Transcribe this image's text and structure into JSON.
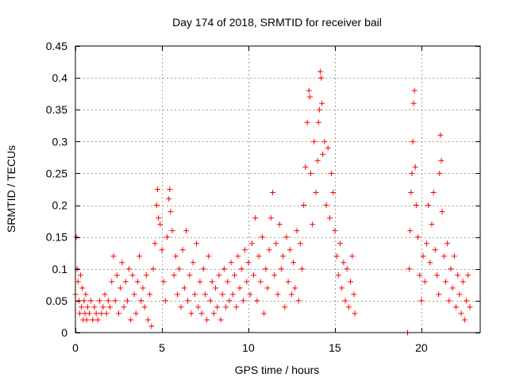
{
  "chart_data": {
    "type": "scatter",
    "title": "Day 174 of 2018, SRMTID for receiver bail",
    "xlabel": "GPS time / hours",
    "ylabel": "SRMTID / TECUs",
    "xlim": [
      0,
      23.4
    ],
    "ylim": [
      0,
      0.45
    ],
    "xticks": [
      0,
      5,
      10,
      15,
      20
    ],
    "xtick_labels": [
      "0",
      "5",
      "10",
      "15",
      "20"
    ],
    "yticks": [
      0,
      0.05,
      0.1,
      0.15,
      0.2,
      0.25,
      0.3,
      0.35,
      0.4,
      0.45
    ],
    "ytick_labels": [
      "0",
      "0.05",
      "0.1",
      "0.15",
      "0.2",
      "0.25",
      "0.3",
      "0.35",
      "0.4",
      "0.45"
    ],
    "grid": true,
    "marker": "+",
    "color": "#ff0000",
    "series": [
      {
        "name": "SRMTID",
        "points": [
          [
            0.0,
            0.06
          ],
          [
            0.05,
            0.15
          ],
          [
            0.1,
            0.1
          ],
          [
            0.15,
            0.08
          ],
          [
            0.2,
            0.05
          ],
          [
            0.25,
            0.03
          ],
          [
            0.3,
            0.09
          ],
          [
            0.35,
            0.04
          ],
          [
            0.4,
            0.07
          ],
          [
            0.45,
            0.02
          ],
          [
            0.5,
            0.05
          ],
          [
            0.55,
            0.03
          ],
          [
            0.6,
            0.06
          ],
          [
            0.65,
            0.02
          ],
          [
            0.7,
            0.04
          ],
          [
            0.8,
            0.03
          ],
          [
            0.9,
            0.05
          ],
          [
            1.0,
            0.02
          ],
          [
            1.1,
            0.04
          ],
          [
            1.2,
            0.03
          ],
          [
            1.3,
            0.02
          ],
          [
            1.4,
            0.05
          ],
          [
            1.5,
            0.03
          ],
          [
            1.6,
            0.04
          ],
          [
            1.7,
            0.06
          ],
          [
            1.8,
            0.03
          ],
          [
            1.9,
            0.05
          ],
          [
            2.0,
            0.04
          ],
          [
            2.1,
            0.08
          ],
          [
            2.2,
            0.12
          ],
          [
            2.3,
            0.05
          ],
          [
            2.4,
            0.09
          ],
          [
            2.5,
            0.03
          ],
          [
            2.6,
            0.07
          ],
          [
            2.7,
            0.11
          ],
          [
            2.8,
            0.04
          ],
          [
            2.9,
            0.08
          ],
          [
            3.0,
            0.05
          ],
          [
            3.1,
            0.1
          ],
          [
            3.2,
            0.02
          ],
          [
            3.3,
            0.09
          ],
          [
            3.4,
            0.06
          ],
          [
            3.5,
            0.03
          ],
          [
            3.6,
            0.08
          ],
          [
            3.7,
            0.12
          ],
          [
            3.8,
            0.05
          ],
          [
            3.9,
            0.07
          ],
          [
            4.0,
            0.04
          ],
          [
            4.1,
            0.09
          ],
          [
            4.2,
            0.02
          ],
          [
            4.3,
            0.06
          ],
          [
            4.4,
            0.01
          ],
          [
            4.5,
            0.1
          ],
          [
            4.6,
            0.14
          ],
          [
            4.7,
            0.2
          ],
          [
            4.75,
            0.225
          ],
          [
            4.8,
            0.18
          ],
          [
            4.9,
            0.17
          ],
          [
            5.0,
            0.13
          ],
          [
            5.1,
            0.08
          ],
          [
            5.2,
            0.05
          ],
          [
            5.3,
            0.15
          ],
          [
            5.4,
            0.21
          ],
          [
            5.45,
            0.225
          ],
          [
            5.5,
            0.19
          ],
          [
            5.6,
            0.16
          ],
          [
            5.7,
            0.09
          ],
          [
            5.8,
            0.12
          ],
          [
            5.9,
            0.06
          ],
          [
            6.0,
            0.1
          ],
          [
            6.1,
            0.04
          ],
          [
            6.2,
            0.13
          ],
          [
            6.3,
            0.07
          ],
          [
            6.4,
            0.16
          ],
          [
            6.5,
            0.05
          ],
          [
            6.6,
            0.09
          ],
          [
            6.7,
            0.03
          ],
          [
            6.8,
            0.11
          ],
          [
            6.9,
            0.06
          ],
          [
            7.0,
            0.14
          ],
          [
            7.1,
            0.04
          ],
          [
            7.2,
            0.08
          ],
          [
            7.3,
            0.03
          ],
          [
            7.4,
            0.1
          ],
          [
            7.5,
            0.06
          ],
          [
            7.6,
            0.02
          ],
          [
            7.7,
            0.12
          ],
          [
            7.8,
            0.05
          ],
          [
            7.9,
            0.08
          ],
          [
            8.0,
            0.03
          ],
          [
            8.1,
            0.07
          ],
          [
            8.2,
            0.04
          ],
          [
            8.3,
            0.09
          ],
          [
            8.4,
            0.02
          ],
          [
            8.5,
            0.06
          ],
          [
            8.6,
            0.1
          ],
          [
            8.7,
            0.04
          ],
          [
            8.8,
            0.08
          ],
          [
            8.9,
            0.05
          ],
          [
            9.0,
            0.11
          ],
          [
            9.1,
            0.06
          ],
          [
            9.2,
            0.09
          ],
          [
            9.3,
            0.04
          ],
          [
            9.4,
            0.12
          ],
          [
            9.5,
            0.07
          ],
          [
            9.6,
            0.1
          ],
          [
            9.7,
            0.05
          ],
          [
            9.8,
            0.13
          ],
          [
            9.9,
            0.08
          ],
          [
            10.0,
            0.11
          ],
          [
            10.1,
            0.06
          ],
          [
            10.2,
            0.14
          ],
          [
            10.3,
            0.09
          ],
          [
            10.4,
            0.18
          ],
          [
            10.5,
            0.05
          ],
          [
            10.6,
            0.12
          ],
          [
            10.7,
            0.08
          ],
          [
            10.8,
            0.15
          ],
          [
            10.9,
            0.03
          ],
          [
            11.0,
            0.1
          ],
          [
            11.1,
            0.07
          ],
          [
            11.2,
            0.13
          ],
          [
            11.3,
            0.18
          ],
          [
            11.4,
            0.22
          ],
          [
            11.5,
            0.09
          ],
          [
            11.6,
            0.14
          ],
          [
            11.7,
            0.06
          ],
          [
            11.8,
            0.17
          ],
          [
            11.9,
            0.1
          ],
          [
            12.0,
            0.12
          ],
          [
            12.1,
            0.04
          ],
          [
            12.2,
            0.15
          ],
          [
            12.3,
            0.08
          ],
          [
            12.4,
            0.13
          ],
          [
            12.5,
            0.06
          ],
          [
            12.6,
            0.11
          ],
          [
            12.7,
            0.07
          ],
          [
            12.8,
            0.16
          ],
          [
            12.9,
            0.05
          ],
          [
            13.0,
            0.14
          ],
          [
            13.1,
            0.1
          ],
          [
            13.2,
            0.2
          ],
          [
            13.3,
            0.26
          ],
          [
            13.4,
            0.33
          ],
          [
            13.5,
            0.38
          ],
          [
            13.55,
            0.37
          ],
          [
            13.6,
            0.25
          ],
          [
            13.7,
            0.17
          ],
          [
            13.8,
            0.3
          ],
          [
            13.9,
            0.22
          ],
          [
            14.0,
            0.27
          ],
          [
            14.05,
            0.33
          ],
          [
            14.1,
            0.35
          ],
          [
            14.15,
            0.41
          ],
          [
            14.2,
            0.4
          ],
          [
            14.25,
            0.36
          ],
          [
            14.3,
            0.28
          ],
          [
            14.4,
            0.3
          ],
          [
            14.5,
            0.2
          ],
          [
            14.6,
            0.29
          ],
          [
            14.7,
            0.18
          ],
          [
            14.8,
            0.25
          ],
          [
            14.9,
            0.22
          ],
          [
            15.0,
            0.16
          ],
          [
            15.1,
            0.12
          ],
          [
            15.2,
            0.09
          ],
          [
            15.3,
            0.14
          ],
          [
            15.4,
            0.07
          ],
          [
            15.5,
            0.11
          ],
          [
            15.6,
            0.05
          ],
          [
            15.7,
            0.1
          ],
          [
            15.8,
            0.04
          ],
          [
            15.9,
            0.08
          ],
          [
            16.0,
            0.12
          ],
          [
            16.1,
            0.06
          ],
          [
            16.15,
            0.03
          ],
          [
            19.2,
            0.0
          ],
          [
            19.3,
            0.1
          ],
          [
            19.35,
            0.16
          ],
          [
            19.4,
            0.22
          ],
          [
            19.45,
            0.25
          ],
          [
            19.5,
            0.3
          ],
          [
            19.55,
            0.36
          ],
          [
            19.6,
            0.38
          ],
          [
            19.65,
            0.26
          ],
          [
            19.7,
            0.2
          ],
          [
            19.8,
            0.15
          ],
          [
            19.9,
            0.09
          ],
          [
            20.0,
            0.05
          ],
          [
            20.1,
            0.12
          ],
          [
            20.2,
            0.08
          ],
          [
            20.3,
            0.14
          ],
          [
            20.4,
            0.2
          ],
          [
            20.5,
            0.11
          ],
          [
            20.6,
            0.17
          ],
          [
            20.7,
            0.22
          ],
          [
            20.8,
            0.13
          ],
          [
            20.9,
            0.09
          ],
          [
            21.0,
            0.06
          ],
          [
            21.05,
            0.25
          ],
          [
            21.1,
            0.31
          ],
          [
            21.15,
            0.27
          ],
          [
            21.2,
            0.19
          ],
          [
            21.3,
            0.12
          ],
          [
            21.4,
            0.08
          ],
          [
            21.5,
            0.14
          ],
          [
            21.6,
            0.05
          ],
          [
            21.7,
            0.1
          ],
          [
            21.8,
            0.07
          ],
          [
            21.9,
            0.12
          ],
          [
            22.0,
            0.04
          ],
          [
            22.1,
            0.09
          ],
          [
            22.2,
            0.06
          ],
          [
            22.3,
            0.03
          ],
          [
            22.4,
            0.08
          ],
          [
            22.5,
            0.02
          ],
          [
            22.6,
            0.05
          ],
          [
            22.7,
            0.09
          ],
          [
            22.8,
            0.04
          ]
        ]
      }
    ]
  }
}
